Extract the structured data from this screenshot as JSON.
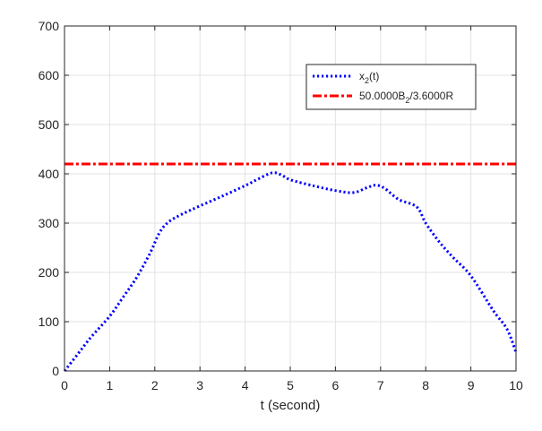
{
  "chart_data": {
    "type": "line",
    "title": "",
    "xlabel": "t (second)",
    "ylabel": "",
    "xlim": [
      0,
      10
    ],
    "ylim": [
      0,
      700
    ],
    "xticks": [
      0,
      1,
      2,
      3,
      4,
      5,
      6,
      7,
      8,
      9,
      10
    ],
    "yticks": [
      0,
      100,
      200,
      300,
      400,
      500,
      600,
      700
    ],
    "grid": true,
    "legend_position": "upper-right-inset",
    "series": [
      {
        "name": "x_2(t)",
        "label_main": "x",
        "label_sub": "2",
        "label_tail": "(t)",
        "style": "dotted",
        "color": "#0000ff",
        "x": [
          0,
          0.3,
          0.6,
          1.0,
          1.3,
          1.6,
          1.9,
          2.1,
          2.3,
          2.6,
          3.0,
          3.5,
          4.0,
          4.3,
          4.6,
          4.8,
          5.0,
          5.5,
          6.0,
          6.4,
          6.7,
          6.9,
          7.1,
          7.4,
          7.8,
          8.0,
          8.3,
          8.6,
          9.0,
          9.5,
          9.8,
          10.0
        ],
        "y": [
          0,
          35,
          70,
          111,
          150,
          190,
          240,
          280,
          302,
          318,
          335,
          355,
          376,
          390,
          402,
          398,
          388,
          376,
          366,
          362,
          372,
          377,
          370,
          348,
          333,
          300,
          262,
          231,
          193,
          122,
          85,
          38
        ]
      },
      {
        "name": "50.0000B_2/3.6000R",
        "label_main": "50.0000B",
        "label_sub": "2",
        "label_tail": "/3.6000R",
        "style": "dashdot",
        "color": "#ff0000",
        "x": [
          0,
          10
        ],
        "y": [
          420,
          420
        ]
      }
    ]
  }
}
